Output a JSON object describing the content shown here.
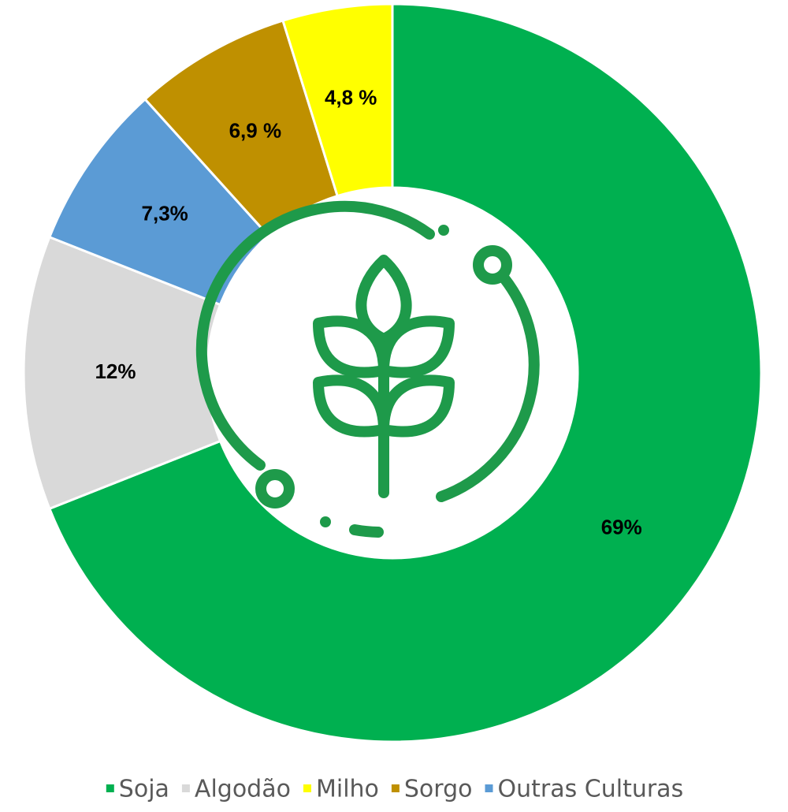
{
  "chart_data": {
    "type": "donut",
    "categories": [
      "Soja",
      "Algodão",
      "Outras Culturas",
      "Sorgo",
      "Milho"
    ],
    "values": [
      69,
      12,
      7.3,
      6.9,
      4.8
    ],
    "value_labels": [
      "69%",
      "12%",
      "7,3%",
      "6,9 %",
      "4,8 %"
    ],
    "colors": [
      "#00b050",
      "#d9d9d9",
      "#5b9bd5",
      "#bf9000",
      "#ffff00"
    ],
    "legend": [
      "Soja",
      "Algodão",
      "Milho",
      "Sorgo",
      "Outras Culturas"
    ]
  }
}
